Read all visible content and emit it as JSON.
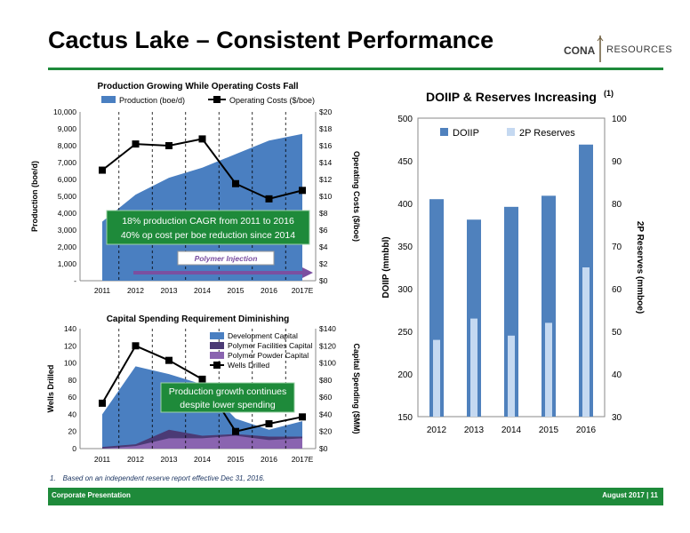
{
  "header": {
    "title": "Cactus Lake – Consistent Performance",
    "logo_left": "CONA",
    "logo_right": "RESOURCES"
  },
  "colors": {
    "green": "#1e8a3a",
    "blue_area": "#4a7fc1",
    "dark_blue": "#1f3864",
    "purple": "#7b4fa0",
    "light_blue": "#c5d9f1",
    "reserves_blue": "#4f81bd"
  },
  "footnote": {
    "number": "1.",
    "text": "Based on an independent reserve report effective Dec 31, 2016."
  },
  "footer": {
    "left": "Corporate Presentation",
    "right": "August 2017 | 11"
  },
  "chart_data": [
    {
      "id": "production",
      "type": "area+line",
      "title": "Production Growing While Operating Costs Fall",
      "categories": [
        "2011",
        "2012",
        "2013",
        "2014",
        "2015",
        "2016",
        "2017E"
      ],
      "ylabel": "Production (boe/d)",
      "y2label": "Operating Costs ($/boe)",
      "ylim": [
        0,
        10000
      ],
      "y2lim": [
        0,
        20
      ],
      "yticks": [
        "-",
        "1,000",
        "2,000",
        "3,000",
        "4,000",
        "5,000",
        "6,000",
        "7,000",
        "8,000",
        "9,000",
        "10,000"
      ],
      "y2ticks": [
        "$0",
        "$2",
        "$4",
        "$6",
        "$8",
        "$10",
        "$12",
        "$14",
        "$16",
        "$18",
        "$20"
      ],
      "series": [
        {
          "name": "Production (boe/d)",
          "kind": "area",
          "values": [
            3500,
            5100,
            6100,
            6700,
            7500,
            8300,
            8700
          ]
        },
        {
          "name": "Operating Costs ($/boe)",
          "kind": "line",
          "axis": "y2",
          "values": [
            13.1,
            16.2,
            16.0,
            16.8,
            11.5,
            9.7,
            10.7
          ]
        }
      ],
      "annotations": [
        {
          "text": "18% production CAGR from 2011 to 2016"
        },
        {
          "text": "40% op cost per boe reduction since 2014"
        },
        {
          "text": "Polymer Injection"
        }
      ],
      "legend": "top"
    },
    {
      "id": "capex",
      "type": "area+line",
      "title": "Capital Spending Requirement Diminishing",
      "categories": [
        "2011",
        "2012",
        "2013",
        "2014",
        "2015",
        "2016",
        "2017E"
      ],
      "ylabel": "Wells Drilled",
      "y2label": "Capital Spending ($MM)",
      "ylim": [
        0,
        140
      ],
      "y2lim": [
        0,
        140
      ],
      "yticks": [
        "0",
        "20",
        "40",
        "60",
        "80",
        "100",
        "120",
        "140"
      ],
      "y2ticks": [
        "$0",
        "$20",
        "$40",
        "$60",
        "$80",
        "$100",
        "$120",
        "$140"
      ],
      "series": [
        {
          "name": "Development Capital",
          "kind": "area",
          "axis": "y2",
          "values": [
            40,
            96,
            87,
            75,
            35,
            22,
            32
          ]
        },
        {
          "name": "Polymer Facilities Capital",
          "kind": "area",
          "axis": "y2",
          "values": [
            2,
            5,
            22,
            15,
            17,
            14,
            14
          ]
        },
        {
          "name": "Polymer Powder Capital",
          "kind": "area",
          "axis": "y2",
          "values": [
            0,
            3,
            12,
            12,
            15,
            10,
            12
          ]
        },
        {
          "name": "Wells Drilled",
          "kind": "line",
          "values": [
            53,
            120,
            103,
            81,
            20,
            29,
            37
          ]
        }
      ],
      "annotations": [
        {
          "text": "Production growth continues"
        },
        {
          "text": "despite lower spending"
        }
      ],
      "legend": "top-right"
    },
    {
      "id": "reserves",
      "type": "bar",
      "title": "DOIIP & Reserves Increasing",
      "title_sup": "(1)",
      "categories": [
        "2012",
        "2013",
        "2014",
        "2015",
        "2016"
      ],
      "ylabel": "DOIIP (mmbbl)",
      "y2label": "2P Reserves (mmboe)",
      "ylim": [
        150,
        500
      ],
      "y2lim": [
        30,
        100
      ],
      "yticks": [
        "150",
        "200",
        "250",
        "300",
        "350",
        "400",
        "450",
        "500"
      ],
      "y2ticks": [
        "30",
        "40",
        "50",
        "60",
        "70",
        "80",
        "90",
        "100"
      ],
      "series": [
        {
          "name": "DOIIP",
          "values": [
            405,
            381,
            396,
            409,
            469
          ]
        },
        {
          "name": "2P Reserves",
          "axis": "y2",
          "values": [
            48,
            53,
            49,
            52,
            65
          ]
        }
      ],
      "legend": "top-left"
    }
  ]
}
